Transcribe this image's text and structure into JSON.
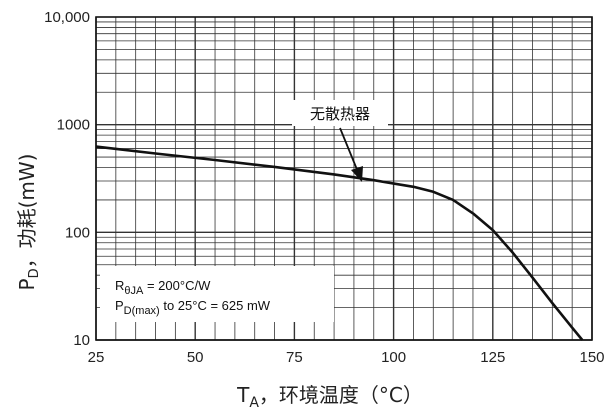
{
  "chart_data": {
    "type": "line",
    "x_axis": {
      "label_main": "T",
      "label_sub": "A",
      "label_rest": "，环境温度（°C）",
      "ticks": [
        25,
        50,
        75,
        100,
        125,
        150
      ],
      "tick_labels": [
        "25",
        "50",
        "75",
        "100",
        "125",
        "150"
      ],
      "range": [
        25,
        150
      ]
    },
    "y_axis": {
      "label_main": "P",
      "label_sub": "D",
      "label_rest": "，功耗(mW)",
      "scale": "log",
      "ticks": [
        10,
        100,
        1000,
        10000
      ],
      "tick_labels": [
        "10",
        "100",
        "1000",
        "10,000"
      ],
      "range": [
        10,
        10000
      ]
    },
    "grid": true,
    "series": [
      {
        "name": "无散热器",
        "x": [
          25,
          40,
          55,
          70,
          85,
          95,
          105,
          110,
          115,
          120,
          125,
          130,
          135,
          140,
          145,
          150
        ],
        "y": [
          625,
          540,
          470,
          405,
          345,
          305,
          265,
          238,
          200,
          150,
          105,
          65,
          38,
          22,
          13,
          7.8
        ]
      }
    ],
    "annotations": {
      "callout": "无散热器",
      "note_line1_main": "R",
      "note_line1_sub": "θJA",
      "note_line1_rest": " = 200°C/W",
      "note_line2_main": "P",
      "note_line2_sub": "D(max)",
      "note_line2_rest": " to 25°C = 625 mW"
    },
    "colors": {
      "line": "#111111",
      "grid": "#333333",
      "background": "#ffffff"
    }
  }
}
